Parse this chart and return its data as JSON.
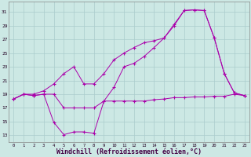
{
  "background_color": "#cce8e4",
  "grid_color": "#aacccc",
  "line_color": "#aa00aa",
  "xlabel": "Windchill (Refroidissement éolien,°C)",
  "xlabel_fontsize": 6,
  "xlim": [
    -0.5,
    23.5
  ],
  "ylim": [
    12.0,
    32.5
  ],
  "yticks": [
    13,
    15,
    17,
    19,
    21,
    23,
    25,
    27,
    29,
    31
  ],
  "xticks": [
    0,
    1,
    2,
    3,
    4,
    5,
    6,
    7,
    8,
    9,
    10,
    11,
    12,
    13,
    14,
    15,
    16,
    17,
    18,
    19,
    20,
    21,
    22,
    23
  ],
  "s1_x": [
    0,
    1,
    2,
    3,
    4,
    5,
    6,
    7,
    8,
    9,
    10,
    11,
    12,
    13,
    14,
    15,
    16,
    17,
    18,
    19,
    20,
    21,
    22,
    23
  ],
  "s1_y": [
    18.3,
    19.0,
    18.8,
    19.0,
    19.0,
    17.0,
    17.0,
    17.0,
    17.0,
    18.0,
    18.0,
    18.0,
    18.0,
    18.0,
    18.2,
    18.3,
    18.5,
    18.5,
    18.6,
    18.6,
    18.7,
    18.7,
    19.0,
    18.8
  ],
  "s2_x": [
    0,
    1,
    2,
    3,
    4,
    5,
    6,
    7,
    8,
    9,
    10,
    11,
    12,
    13,
    14,
    15,
    16,
    17,
    18,
    19,
    20,
    21,
    22,
    23
  ],
  "s2_y": [
    18.3,
    19.0,
    18.8,
    19.0,
    14.9,
    13.1,
    13.5,
    13.5,
    13.3,
    18.0,
    20.0,
    23.0,
    23.5,
    24.5,
    25.8,
    27.2,
    29.2,
    31.2,
    31.3,
    31.2,
    27.2,
    22.0,
    19.2,
    18.8
  ],
  "s3_x": [
    0,
    1,
    2,
    3,
    4,
    5,
    6,
    7,
    8,
    9,
    10,
    11,
    12,
    13,
    14,
    15,
    16,
    17,
    18,
    19,
    20,
    21,
    22,
    23
  ],
  "s3_y": [
    18.3,
    19.0,
    19.0,
    19.5,
    20.5,
    22.0,
    23.0,
    20.5,
    20.5,
    22.0,
    24.0,
    25.0,
    25.8,
    26.5,
    26.8,
    27.2,
    29.0,
    31.2,
    31.3,
    31.2,
    27.2,
    22.0,
    19.2,
    18.8
  ]
}
